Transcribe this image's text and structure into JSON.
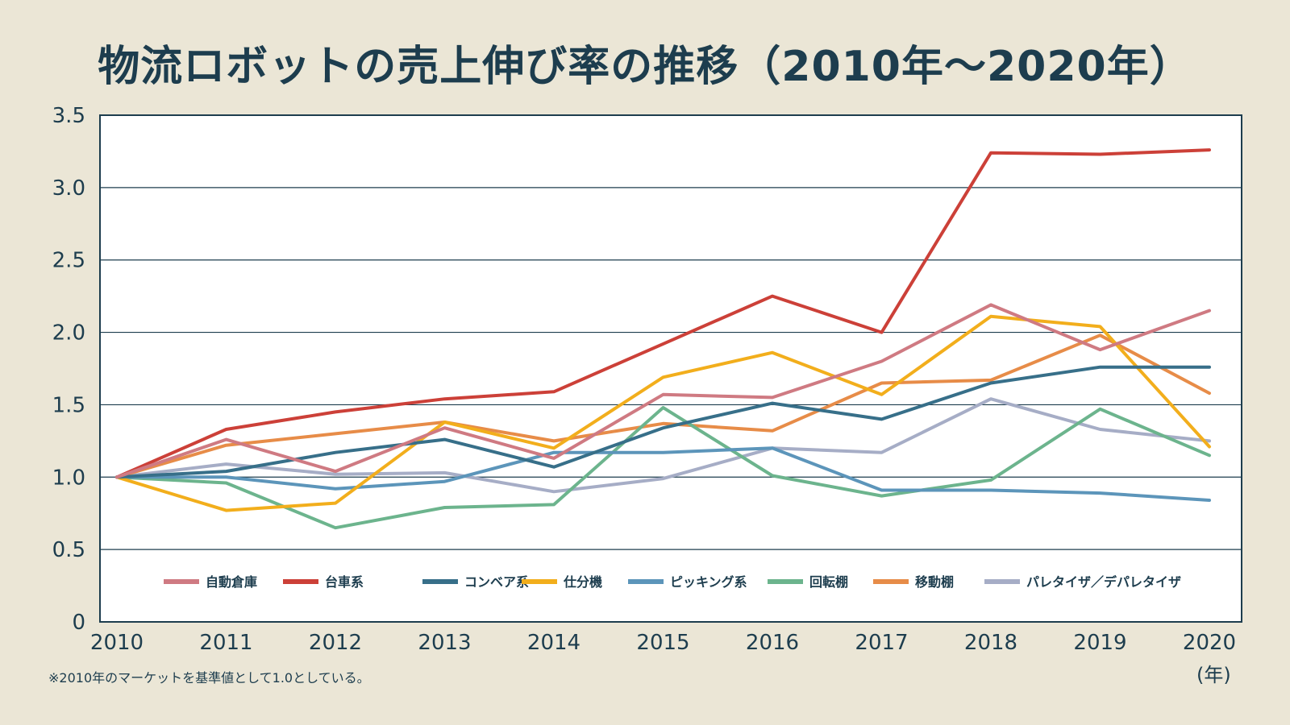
{
  "chart_data": {
    "type": "line",
    "title": "物流ロボットの売上伸び率の推移（2010年〜2020年）",
    "x": [
      "2010",
      "2011",
      "2012",
      "2013",
      "2014",
      "2015",
      "2016",
      "2017",
      "2018",
      "2019",
      "2020"
    ],
    "x_unit": "(年)",
    "ylim": [
      0,
      3.5
    ],
    "y_ticks": [
      "0",
      "0.5",
      "1.0",
      "1.5",
      "2.0",
      "2.5",
      "3.0",
      "3.5"
    ],
    "grid": true,
    "legend_position": "bottom-inside",
    "footnote": "※2010年のマーケットを基準値として1.0としている。",
    "series": [
      {
        "name": "自動倉庫",
        "color": "#cf7a82",
        "values": [
          1.0,
          1.26,
          1.04,
          1.34,
          1.13,
          1.57,
          1.55,
          1.8,
          2.19,
          1.88,
          2.15
        ]
      },
      {
        "name": "台車系",
        "color": "#cc4038",
        "values": [
          1.0,
          1.33,
          1.45,
          1.54,
          1.59,
          1.92,
          2.25,
          2.0,
          3.24,
          3.23,
          3.26
        ]
      },
      {
        "name": "コンベア系",
        "color": "#376f89",
        "values": [
          1.0,
          1.04,
          1.17,
          1.26,
          1.07,
          1.34,
          1.51,
          1.4,
          1.65,
          1.76,
          1.76
        ]
      },
      {
        "name": "仕分機",
        "color": "#f2ae1c",
        "values": [
          1.0,
          0.77,
          0.82,
          1.38,
          1.2,
          1.69,
          1.86,
          1.57,
          2.11,
          2.04,
          1.21
        ]
      },
      {
        "name": "ピッキング系",
        "color": "#5c95ba",
        "values": [
          1.0,
          1.0,
          0.92,
          0.97,
          1.17,
          1.17,
          1.2,
          0.91,
          0.91,
          0.89,
          0.84
        ]
      },
      {
        "name": "回転棚",
        "color": "#6cb48d",
        "values": [
          1.0,
          0.96,
          0.65,
          0.79,
          0.81,
          1.48,
          1.01,
          0.87,
          0.98,
          1.47,
          1.15
        ]
      },
      {
        "name": "移動棚",
        "color": "#e78c48",
        "values": [
          1.0,
          1.22,
          1.3,
          1.38,
          1.25,
          1.37,
          1.32,
          1.65,
          1.67,
          1.98,
          1.58
        ]
      },
      {
        "name": "パレタイザ／デパレタイザ",
        "color": "#a6adc6",
        "values": [
          1.0,
          1.09,
          1.02,
          1.03,
          0.9,
          0.99,
          1.2,
          1.17,
          1.54,
          1.33,
          1.25
        ]
      }
    ]
  },
  "colors": {
    "background": "#ebe6d6",
    "plot_background": "#ffffff",
    "text": "#1d3d4e",
    "grid": "#1d3d4e"
  }
}
